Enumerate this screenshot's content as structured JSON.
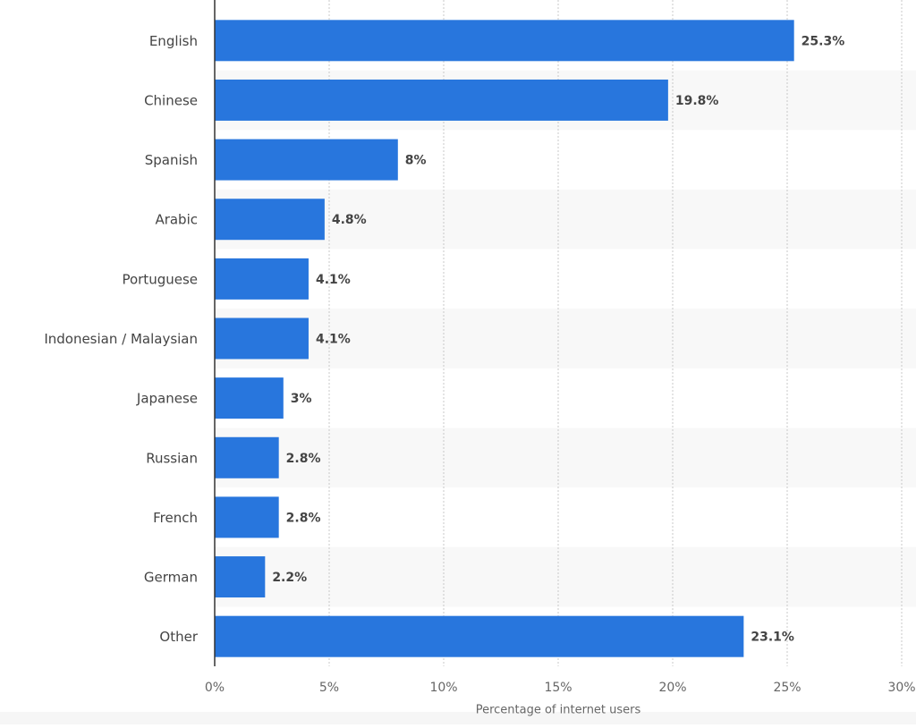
{
  "chart_data": {
    "type": "bar",
    "orientation": "horizontal",
    "x_label": "Percentage of internet users",
    "categories": [
      "English",
      "Chinese",
      "Spanish",
      "Arabic",
      "Portuguese",
      "Indonesian / Malaysian",
      "Japanese",
      "Russian",
      "French",
      "German",
      "Other"
    ],
    "values": [
      25.3,
      19.8,
      8,
      4.8,
      4.1,
      4.1,
      3,
      2.8,
      2.8,
      2.2,
      23.1
    ],
    "value_labels": [
      "25.3%",
      "19.8%",
      "8%",
      "4.8%",
      "4.1%",
      "4.1%",
      "3%",
      "2.8%",
      "2.8%",
      "2.2%",
      "23.1%"
    ],
    "color": "#2876dd",
    "xlim": [
      0,
      30
    ],
    "xticks": [
      {
        "value": 0,
        "label": "0%"
      },
      {
        "value": 5,
        "label": "5%"
      },
      {
        "value": 10,
        "label": "10%"
      },
      {
        "value": 15,
        "label": "15%"
      },
      {
        "value": 20,
        "label": "20%"
      },
      {
        "value": 25,
        "label": "25%"
      },
      {
        "value": 30,
        "label": "30%"
      }
    ],
    "grid": true
  }
}
